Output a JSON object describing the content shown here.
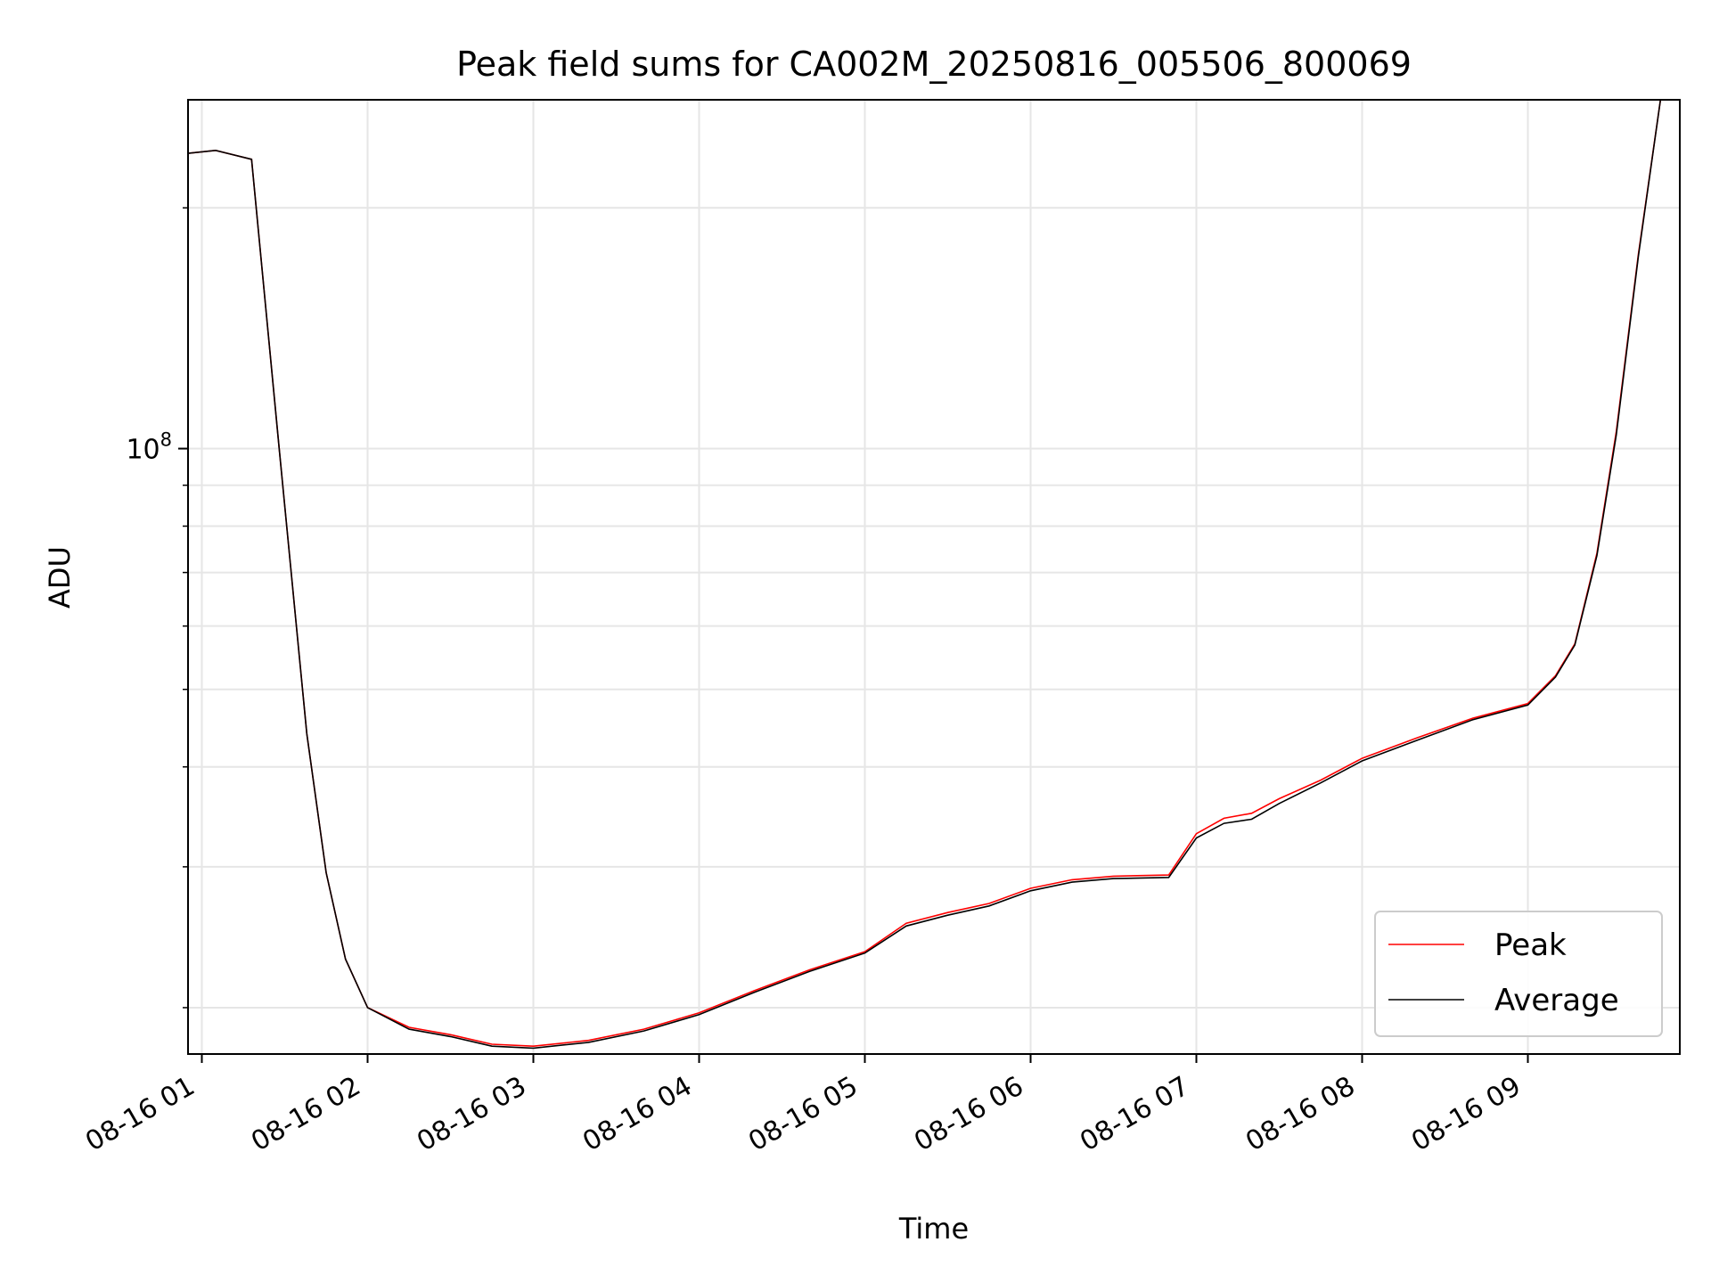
{
  "chart_data": {
    "type": "line",
    "title": "Peak field sums for CA002M_20250816_005506_800069",
    "xlabel": "Time",
    "ylabel": "ADU",
    "yscale": "log",
    "ylim": [
      17500000,
      273000000
    ],
    "xlim": [
      "2025-08-16 00:55",
      "2025-08-16 09:55"
    ],
    "grid": true,
    "legend_position": "lower-right",
    "x_tick_labels": [
      "08-16 01",
      "08-16 02",
      "08-16 03",
      "08-16 04",
      "08-16 05",
      "08-16 06",
      "08-16 07",
      "08-16 08",
      "08-16 09"
    ],
    "y_tick_labels": [
      {
        "base": "10",
        "exp": "8"
      }
    ],
    "x": [
      "2025-08-16 00:55",
      "2025-08-16 01:05",
      "2025-08-16 01:18",
      "2025-08-16 01:28",
      "2025-08-16 01:38",
      "2025-08-16 01:45",
      "2025-08-16 01:52",
      "2025-08-16 02:00",
      "2025-08-16 02:15",
      "2025-08-16 02:30",
      "2025-08-16 02:45",
      "2025-08-16 03:00",
      "2025-08-16 03:20",
      "2025-08-16 03:40",
      "2025-08-16 04:00",
      "2025-08-16 04:20",
      "2025-08-16 04:40",
      "2025-08-16 05:00",
      "2025-08-16 05:15",
      "2025-08-16 05:30",
      "2025-08-16 05:45",
      "2025-08-16 06:00",
      "2025-08-16 06:15",
      "2025-08-16 06:30",
      "2025-08-16 06:50",
      "2025-08-16 07:00",
      "2025-08-16 07:10",
      "2025-08-16 07:20",
      "2025-08-16 07:30",
      "2025-08-16 07:45",
      "2025-08-16 08:00",
      "2025-08-16 08:20",
      "2025-08-16 08:40",
      "2025-08-16 09:00",
      "2025-08-16 09:10",
      "2025-08-16 09:17",
      "2025-08-16 09:25",
      "2025-08-16 09:32",
      "2025-08-16 09:40",
      "2025-08-16 09:48",
      "2025-08-16 09:55"
    ],
    "series": [
      {
        "name": "Peak",
        "color": "#ff0000",
        "values": [
          234000000,
          236000000,
          230000000,
          100000000,
          44000000,
          29500000,
          23000000,
          20000000,
          18900000,
          18500000,
          18000000,
          17900000,
          18200000,
          18800000,
          19700000,
          21000000,
          22300000,
          23500000,
          25500000,
          26300000,
          27000000,
          28200000,
          28900000,
          29200000,
          29300000,
          33000000,
          34500000,
          35000000,
          36500000,
          38500000,
          41000000,
          43500000,
          46000000,
          48000000,
          52000000,
          57000000,
          74000000,
          105000000,
          175000000,
          273000000,
          273000000
        ]
      },
      {
        "name": "Average",
        "color": "#000000",
        "values": [
          234000000,
          236000000,
          230000000,
          100000000,
          44000000,
          29500000,
          23000000,
          20000000,
          18800000,
          18400000,
          17900000,
          17800000,
          18100000,
          18700000,
          19600000,
          20900000,
          22200000,
          23400000,
          25300000,
          26100000,
          26800000,
          28000000,
          28700000,
          29000000,
          29100000,
          32600000,
          34000000,
          34400000,
          36000000,
          38200000,
          40700000,
          43200000,
          45800000,
          47800000,
          51800000,
          56800000,
          73500000,
          104000000,
          174000000,
          273000000,
          273000000
        ]
      }
    ]
  }
}
